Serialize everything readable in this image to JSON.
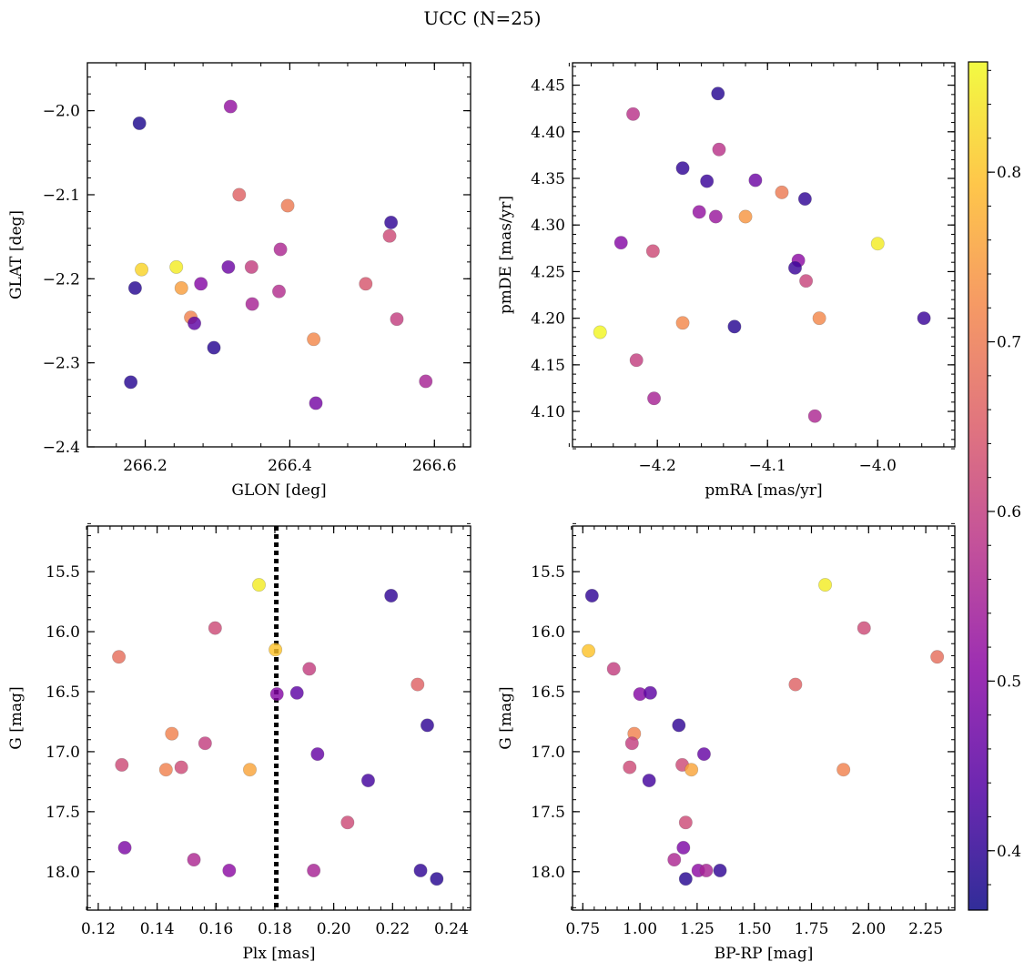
{
  "title": "UCC (N=25)",
  "colorbar": {
    "range": [
      0.365,
      0.865
    ],
    "ticks": [
      0.4,
      0.5,
      0.6,
      0.7,
      0.8
    ],
    "colormap": "plasma",
    "colormap_stops": [
      "#0d0887",
      "#5302a3",
      "#8b0aa5",
      "#b83289",
      "#db5c68",
      "#f48849",
      "#febd2a",
      "#f0f921"
    ]
  },
  "chart_data": [
    {
      "type": "scatter",
      "xlabel": "GLON [deg]",
      "ylabel": "GLAT [deg]",
      "xlim": [
        266.12,
        266.65
      ],
      "ylim": [
        -2.4,
        -1.943
      ],
      "xticks": [
        266.2,
        266.4,
        266.6
      ],
      "yticks": [
        -2.4,
        -2.3,
        -2.2,
        -2.1,
        -2.0
      ],
      "ytick_labels": [
        "−2.4",
        "−2.3",
        "−2.2",
        "−2.1",
        "−2.0"
      ],
      "points": [
        {
          "x": 266.192,
          "y": -2.015,
          "c": 0.38
        },
        {
          "x": 266.318,
          "y": -1.995,
          "c": 0.52
        },
        {
          "x": 266.33,
          "y": -2.1,
          "c": 0.66
        },
        {
          "x": 266.397,
          "y": -2.113,
          "c": 0.7
        },
        {
          "x": 266.54,
          "y": -2.133,
          "c": 0.4
        },
        {
          "x": 266.538,
          "y": -2.149,
          "c": 0.62
        },
        {
          "x": 266.387,
          "y": -2.165,
          "c": 0.56
        },
        {
          "x": 266.195,
          "y": -2.189,
          "c": 0.82
        },
        {
          "x": 266.243,
          "y": -2.186,
          "c": 0.85
        },
        {
          "x": 266.315,
          "y": -2.186,
          "c": 0.47
        },
        {
          "x": 266.347,
          "y": -2.186,
          "c": 0.6
        },
        {
          "x": 266.186,
          "y": -2.211,
          "c": 0.39
        },
        {
          "x": 266.25,
          "y": -2.211,
          "c": 0.75
        },
        {
          "x": 266.277,
          "y": -2.206,
          "c": 0.5
        },
        {
          "x": 266.385,
          "y": -2.215,
          "c": 0.57
        },
        {
          "x": 266.505,
          "y": -2.206,
          "c": 0.64
        },
        {
          "x": 266.348,
          "y": -2.23,
          "c": 0.55
        },
        {
          "x": 266.263,
          "y": -2.246,
          "c": 0.71
        },
        {
          "x": 266.268,
          "y": -2.253,
          "c": 0.45
        },
        {
          "x": 266.548,
          "y": -2.248,
          "c": 0.6
        },
        {
          "x": 266.433,
          "y": -2.272,
          "c": 0.72
        },
        {
          "x": 266.295,
          "y": -2.282,
          "c": 0.39
        },
        {
          "x": 266.18,
          "y": -2.323,
          "c": 0.39
        },
        {
          "x": 266.588,
          "y": -2.322,
          "c": 0.55
        },
        {
          "x": 266.436,
          "y": -2.348,
          "c": 0.48
        }
      ]
    },
    {
      "type": "scatter",
      "xlabel": "pmRA [mas/yr]",
      "ylabel": "pmDE [mas/yr]",
      "xlim": [
        -4.277,
        -3.93
      ],
      "ylim": [
        4.062,
        4.474
      ],
      "xticks": [
        -4.2,
        -4.1,
        -4.0
      ],
      "xtick_labels": [
        "−4.2",
        "−4.1",
        "−4.0"
      ],
      "yticks": [
        4.1,
        4.15,
        4.2,
        4.25,
        4.3,
        4.35,
        4.4,
        4.45
      ],
      "ytick_labels": [
        "4.10",
        "4.15",
        "4.20",
        "4.25",
        "4.30",
        "4.35",
        "4.40",
        "4.45"
      ],
      "points": [
        {
          "x": -4.145,
          "y": 4.441,
          "c": 0.39
        },
        {
          "x": -4.222,
          "y": 4.419,
          "c": 0.58
        },
        {
          "x": -4.144,
          "y": 4.381,
          "c": 0.58
        },
        {
          "x": -4.177,
          "y": 4.361,
          "c": 0.4
        },
        {
          "x": -4.155,
          "y": 4.347,
          "c": 0.41
        },
        {
          "x": -4.111,
          "y": 4.348,
          "c": 0.47
        },
        {
          "x": -4.087,
          "y": 4.335,
          "c": 0.7
        },
        {
          "x": -4.066,
          "y": 4.328,
          "c": 0.4
        },
        {
          "x": -4.162,
          "y": 4.314,
          "c": 0.52
        },
        {
          "x": -4.147,
          "y": 4.309,
          "c": 0.53
        },
        {
          "x": -4.12,
          "y": 4.309,
          "c": 0.74
        },
        {
          "x": -4.233,
          "y": 4.281,
          "c": 0.5
        },
        {
          "x": -4.204,
          "y": 4.272,
          "c": 0.62
        },
        {
          "x": -4.0,
          "y": 4.28,
          "c": 0.85
        },
        {
          "x": -4.072,
          "y": 4.262,
          "c": 0.51
        },
        {
          "x": -4.075,
          "y": 4.254,
          "c": 0.41
        },
        {
          "x": -4.065,
          "y": 4.24,
          "c": 0.61
        },
        {
          "x": -4.053,
          "y": 4.2,
          "c": 0.72
        },
        {
          "x": -3.958,
          "y": 4.2,
          "c": 0.41
        },
        {
          "x": -4.177,
          "y": 4.195,
          "c": 0.72
        },
        {
          "x": -4.13,
          "y": 4.191,
          "c": 0.39
        },
        {
          "x": -4.252,
          "y": 4.185,
          "c": 0.86
        },
        {
          "x": -4.219,
          "y": 4.155,
          "c": 0.6
        },
        {
          "x": -4.203,
          "y": 4.114,
          "c": 0.55
        },
        {
          "x": -4.057,
          "y": 4.095,
          "c": 0.56
        }
      ]
    },
    {
      "type": "scatter",
      "xlabel": "Plx [mas]",
      "ylabel": "G [mag]",
      "xlim": [
        0.1163,
        0.2465
      ],
      "ylim": [
        18.32,
        15.12
      ],
      "xticks": [
        0.12,
        0.14,
        0.16,
        0.18,
        0.2,
        0.22,
        0.24
      ],
      "xtick_labels": [
        "0.12",
        "0.14",
        "0.16",
        "0.18",
        "0.20",
        "0.22",
        "0.24"
      ],
      "yticks": [
        15.5,
        16.0,
        16.5,
        17.0,
        17.5,
        18.0
      ],
      "ytick_labels": [
        "15.5",
        "16.0",
        "16.5",
        "17.0",
        "17.5",
        "18.0"
      ],
      "vline_x": 0.1805,
      "points": [
        {
          "x": 0.1746,
          "y": 15.61,
          "c": 0.85
        },
        {
          "x": 0.2195,
          "y": 15.7,
          "c": 0.4
        },
        {
          "x": 0.1597,
          "y": 15.97,
          "c": 0.62
        },
        {
          "x": 0.127,
          "y": 16.21,
          "c": 0.68
        },
        {
          "x": 0.1802,
          "y": 16.15,
          "c": 0.8
        },
        {
          "x": 0.1917,
          "y": 16.31,
          "c": 0.6
        },
        {
          "x": 0.2285,
          "y": 16.44,
          "c": 0.66
        },
        {
          "x": 0.1807,
          "y": 16.52,
          "c": 0.5
        },
        {
          "x": 0.1875,
          "y": 16.51,
          "c": 0.45
        },
        {
          "x": 0.2318,
          "y": 16.78,
          "c": 0.4
        },
        {
          "x": 0.145,
          "y": 16.85,
          "c": 0.71
        },
        {
          "x": 0.1563,
          "y": 16.93,
          "c": 0.6
        },
        {
          "x": 0.1945,
          "y": 17.02,
          "c": 0.46
        },
        {
          "x": 0.128,
          "y": 17.11,
          "c": 0.62
        },
        {
          "x": 0.143,
          "y": 17.15,
          "c": 0.71
        },
        {
          "x": 0.1482,
          "y": 17.13,
          "c": 0.62
        },
        {
          "x": 0.1715,
          "y": 17.15,
          "c": 0.76
        },
        {
          "x": 0.2117,
          "y": 17.24,
          "c": 0.42
        },
        {
          "x": 0.2047,
          "y": 17.59,
          "c": 0.62
        },
        {
          "x": 0.129,
          "y": 17.8,
          "c": 0.49
        },
        {
          "x": 0.1525,
          "y": 17.9,
          "c": 0.56
        },
        {
          "x": 0.1645,
          "y": 17.99,
          "c": 0.51
        },
        {
          "x": 0.1932,
          "y": 17.99,
          "c": 0.55
        },
        {
          "x": 0.2295,
          "y": 17.99,
          "c": 0.4
        },
        {
          "x": 0.235,
          "y": 18.06,
          "c": 0.39
        }
      ]
    },
    {
      "type": "scatter",
      "xlabel": "BP-RP [mag]",
      "ylabel": "G [mag]",
      "xlim": [
        0.705,
        2.377
      ],
      "ylim": [
        18.32,
        15.12
      ],
      "xticks": [
        0.75,
        1.0,
        1.25,
        1.5,
        1.75,
        2.0,
        2.25
      ],
      "xtick_labels": [
        "0.75",
        "1.00",
        "1.25",
        "1.50",
        "1.75",
        "2.00",
        "2.25"
      ],
      "yticks": [
        15.5,
        16.0,
        16.5,
        17.0,
        17.5,
        18.0
      ],
      "ytick_labels": [
        "15.5",
        "16.0",
        "16.5",
        "17.0",
        "17.5",
        "18.0"
      ],
      "points": [
        {
          "x": 1.81,
          "y": 15.61,
          "c": 0.85
        },
        {
          "x": 0.79,
          "y": 15.7,
          "c": 0.4
        },
        {
          "x": 1.98,
          "y": 15.97,
          "c": 0.62
        },
        {
          "x": 0.775,
          "y": 16.16,
          "c": 0.8
        },
        {
          "x": 2.3,
          "y": 16.21,
          "c": 0.68
        },
        {
          "x": 0.885,
          "y": 16.31,
          "c": 0.6
        },
        {
          "x": 1.68,
          "y": 16.44,
          "c": 0.66
        },
        {
          "x": 1.0,
          "y": 16.52,
          "c": 0.5
        },
        {
          "x": 1.045,
          "y": 16.51,
          "c": 0.45
        },
        {
          "x": 1.17,
          "y": 16.78,
          "c": 0.4
        },
        {
          "x": 0.975,
          "y": 16.85,
          "c": 0.71
        },
        {
          "x": 0.965,
          "y": 16.93,
          "c": 0.6
        },
        {
          "x": 1.28,
          "y": 17.02,
          "c": 0.46
        },
        {
          "x": 0.955,
          "y": 17.13,
          "c": 0.62
        },
        {
          "x": 1.185,
          "y": 17.11,
          "c": 0.62
        },
        {
          "x": 1.225,
          "y": 17.15,
          "c": 0.76
        },
        {
          "x": 1.89,
          "y": 17.15,
          "c": 0.71
        },
        {
          "x": 1.04,
          "y": 17.24,
          "c": 0.42
        },
        {
          "x": 1.2,
          "y": 17.59,
          "c": 0.62
        },
        {
          "x": 1.19,
          "y": 17.8,
          "c": 0.49
        },
        {
          "x": 1.15,
          "y": 17.9,
          "c": 0.56
        },
        {
          "x": 1.255,
          "y": 17.99,
          "c": 0.51
        },
        {
          "x": 1.29,
          "y": 17.99,
          "c": 0.55
        },
        {
          "x": 1.35,
          "y": 17.99,
          "c": 0.4
        },
        {
          "x": 1.2,
          "y": 18.06,
          "c": 0.39
        }
      ]
    }
  ]
}
